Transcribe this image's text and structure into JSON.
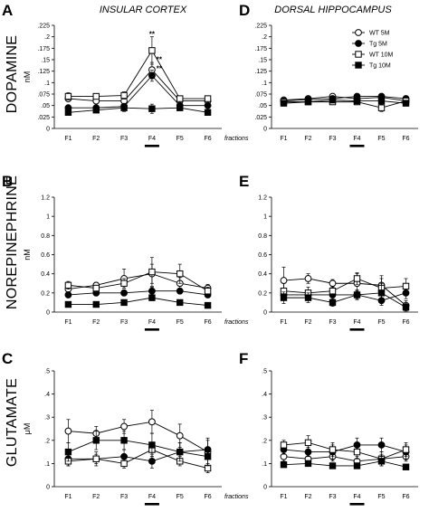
{
  "figure": {
    "col_titles": [
      "INSULAR CORTEX",
      "DORSAL HIPPOCAMPUS"
    ],
    "row_labels": [
      "DOPAMINE",
      "NOREPINEPHRINE",
      "GLUTAMATE"
    ],
    "legend": [
      {
        "name": "WT 5M",
        "marker": "open-circle"
      },
      {
        "name": "Tg 5M",
        "marker": "filled-circle"
      },
      {
        "name": "WT 10M",
        "marker": "open-square"
      },
      {
        "name": "Tg 10M",
        "marker": "filled-square"
      }
    ],
    "fractions_label": "fractions",
    "colors": {
      "ink": "#000000",
      "grid": "#000000",
      "background": "#ffffff"
    }
  },
  "chart_data": [
    {
      "panel": "A",
      "type": "line",
      "ylabel": "nM",
      "ylim": [
        0,
        0.225
      ],
      "yticks": [
        "0",
        ".025",
        ".05",
        ".075",
        ".1",
        ".125",
        ".15",
        ".175",
        ".2",
        ".225"
      ],
      "categories": [
        "F1",
        "F2",
        "F3",
        "F4",
        "F5",
        "F6"
      ],
      "show_fractions": true,
      "highlight": "F4",
      "annotations": [
        {
          "x": "F4",
          "text": "**",
          "y": 0.2
        },
        {
          "x": "F4",
          "text": "**",
          "y": 0.145,
          "dx": 8
        },
        {
          "x": "F4",
          "text": "**",
          "y": 0.125,
          "dx": 8
        }
      ],
      "series": [
        {
          "name": "WT 5M",
          "values": [
            0.065,
            0.06,
            0.06,
            0.128,
            0.06,
            0.06
          ],
          "err": [
            0.006,
            0.006,
            0.006,
            0.016,
            0.006,
            0.006
          ]
        },
        {
          "name": "Tg 5M",
          "values": [
            0.045,
            0.045,
            0.048,
            0.115,
            0.05,
            0.05
          ],
          "err": [
            0.005,
            0.004,
            0.005,
            0.012,
            0.005,
            0.004
          ]
        },
        {
          "name": "WT 10M",
          "values": [
            0.07,
            0.07,
            0.072,
            0.17,
            0.065,
            0.065
          ],
          "err": [
            0.008,
            0.006,
            0.008,
            0.03,
            0.006,
            0.005
          ]
        },
        {
          "name": "Tg 10M",
          "values": [
            0.035,
            0.04,
            0.045,
            0.043,
            0.045,
            0.035
          ],
          "err": [
            0.004,
            0.005,
            0.008,
            0.01,
            0.006,
            0.004
          ]
        }
      ]
    },
    {
      "panel": "D",
      "type": "line",
      "ylabel": "",
      "ylim": [
        0,
        0.225
      ],
      "yticks": [
        "0",
        ".025",
        ".05",
        ".075",
        ".1",
        ".125",
        ".15",
        ".175",
        ".2",
        ".225"
      ],
      "categories": [
        "F1",
        "F2",
        "F3",
        "F4",
        "F5",
        "F6"
      ],
      "show_fractions": false,
      "highlight": "F4",
      "annotations": [],
      "series": [
        {
          "name": "WT 5M",
          "values": [
            0.062,
            0.065,
            0.07,
            0.065,
            0.068,
            0.06
          ],
          "err": [
            0.005,
            0.005,
            0.005,
            0.008,
            0.008,
            0.006
          ]
        },
        {
          "name": "Tg 5M",
          "values": [
            0.06,
            0.063,
            0.065,
            0.07,
            0.07,
            0.065
          ],
          "err": [
            0.005,
            0.005,
            0.005,
            0.006,
            0.006,
            0.006
          ]
        },
        {
          "name": "WT 10M",
          "values": [
            0.058,
            0.058,
            0.058,
            0.058,
            0.045,
            0.06
          ],
          "err": [
            0.004,
            0.004,
            0.004,
            0.006,
            0.008,
            0.005
          ]
        },
        {
          "name": "Tg 10M",
          "values": [
            0.055,
            0.058,
            0.062,
            0.06,
            0.06,
            0.055
          ],
          "err": [
            0.004,
            0.004,
            0.004,
            0.004,
            0.006,
            0.004
          ]
        }
      ]
    },
    {
      "panel": "B",
      "type": "line",
      "ylabel": "nM",
      "ylim": [
        0,
        1.2
      ],
      "yticks": [
        "0",
        "0.2",
        "0.4",
        "0.6",
        "0.8",
        "1",
        "1.2"
      ],
      "categories": [
        "F1",
        "F2",
        "F3",
        "F4",
        "F5",
        "F6"
      ],
      "show_fractions": true,
      "highlight": "F4",
      "annotations": [],
      "series": [
        {
          "name": "WT 5M",
          "values": [
            0.24,
            0.28,
            0.35,
            0.4,
            0.3,
            0.25
          ],
          "err": [
            0.03,
            0.03,
            0.1,
            0.1,
            0.06,
            0.04
          ]
        },
        {
          "name": "Tg 5M",
          "values": [
            0.18,
            0.2,
            0.2,
            0.22,
            0.22,
            0.18
          ],
          "err": [
            0.03,
            0.03,
            0.03,
            0.04,
            0.03,
            0.03
          ]
        },
        {
          "name": "WT 10M",
          "values": [
            0.28,
            0.25,
            0.3,
            0.42,
            0.4,
            0.22
          ],
          "err": [
            0.04,
            0.03,
            0.05,
            0.15,
            0.1,
            0.04
          ]
        },
        {
          "name": "Tg 10M",
          "values": [
            0.08,
            0.08,
            0.1,
            0.15,
            0.1,
            0.07
          ],
          "err": [
            0.02,
            0.02,
            0.02,
            0.03,
            0.02,
            0.02
          ]
        }
      ]
    },
    {
      "panel": "E",
      "type": "line",
      "ylabel": "",
      "ylim": [
        0,
        1.2
      ],
      "yticks": [
        "0",
        "0.2",
        "0.4",
        "0.6",
        "0.8",
        "1",
        "1.2"
      ],
      "categories": [
        "F1",
        "F2",
        "F3",
        "F4",
        "F5",
        "F6"
      ],
      "show_fractions": false,
      "highlight": "F4",
      "annotations": [],
      "series": [
        {
          "name": "WT 5M",
          "values": [
            0.33,
            0.35,
            0.3,
            0.3,
            0.28,
            0.07
          ],
          "err": [
            0.14,
            0.05,
            0.04,
            0.1,
            0.1,
            0.05
          ]
        },
        {
          "name": "Tg 5M",
          "values": [
            0.18,
            0.18,
            0.18,
            0.18,
            0.12,
            0.2
          ],
          "err": [
            0.05,
            0.04,
            0.03,
            0.04,
            0.05,
            0.06
          ]
        },
        {
          "name": "WT 10M",
          "values": [
            0.22,
            0.2,
            0.22,
            0.35,
            0.25,
            0.27
          ],
          "err": [
            0.08,
            0.06,
            0.05,
            0.06,
            0.1,
            0.08
          ]
        },
        {
          "name": "Tg 10M",
          "values": [
            0.15,
            0.15,
            0.1,
            0.18,
            0.2,
            0.05
          ],
          "err": [
            0.06,
            0.05,
            0.04,
            0.05,
            0.1,
            0.04
          ]
        }
      ]
    },
    {
      "panel": "C",
      "type": "line",
      "ylabel": "μM",
      "ylim": [
        0,
        0.5
      ],
      "yticks": [
        "0",
        ".1",
        ".2",
        ".3",
        ".4",
        ".5"
      ],
      "categories": [
        "F1",
        "F2",
        "F3",
        "F4",
        "F5",
        "F6"
      ],
      "show_fractions": true,
      "highlight": "F4",
      "annotations": [],
      "series": [
        {
          "name": "WT 5M",
          "values": [
            0.24,
            0.23,
            0.26,
            0.28,
            0.22,
            0.15
          ],
          "err": [
            0.05,
            0.03,
            0.03,
            0.05,
            0.05,
            0.06
          ]
        },
        {
          "name": "Tg 5M",
          "values": [
            0.12,
            0.12,
            0.13,
            0.11,
            0.15,
            0.16
          ],
          "err": [
            0.03,
            0.03,
            0.03,
            0.03,
            0.04,
            0.04
          ]
        },
        {
          "name": "WT 10M",
          "values": [
            0.11,
            0.12,
            0.1,
            0.16,
            0.11,
            0.08
          ],
          "err": [
            0.02,
            0.02,
            0.02,
            0.03,
            0.02,
            0.02
          ]
        },
        {
          "name": "Tg 10M",
          "values": [
            0.15,
            0.2,
            0.2,
            0.18,
            0.15,
            0.13
          ],
          "err": [
            0.04,
            0.04,
            0.04,
            0.05,
            0.04,
            0.04
          ]
        }
      ]
    },
    {
      "panel": "F",
      "type": "line",
      "ylabel": "",
      "ylim": [
        0,
        0.5
      ],
      "yticks": [
        "0",
        ".1",
        ".2",
        ".3",
        ".4",
        ".5"
      ],
      "categories": [
        "F1",
        "F2",
        "F3",
        "F4",
        "F5",
        "F6"
      ],
      "show_fractions": false,
      "highlight": "F4",
      "annotations": [],
      "series": [
        {
          "name": "WT 5M",
          "values": [
            0.13,
            0.12,
            0.13,
            0.11,
            0.12,
            0.13
          ],
          "err": [
            0.02,
            0.02,
            0.02,
            0.02,
            0.02,
            0.02
          ]
        },
        {
          "name": "Tg 5M",
          "values": [
            0.16,
            0.15,
            0.15,
            0.18,
            0.18,
            0.15
          ],
          "err": [
            0.02,
            0.02,
            0.03,
            0.03,
            0.03,
            0.03
          ]
        },
        {
          "name": "WT 10M",
          "values": [
            0.18,
            0.19,
            0.16,
            0.15,
            0.12,
            0.16
          ],
          "err": [
            0.02,
            0.03,
            0.03,
            0.03,
            0.03,
            0.03
          ]
        },
        {
          "name": "Tg 10M",
          "values": [
            0.095,
            0.1,
            0.09,
            0.09,
            0.11,
            0.085
          ],
          "err": [
            0.01,
            0.01,
            0.01,
            0.01,
            0.02,
            0.01
          ]
        }
      ]
    }
  ]
}
